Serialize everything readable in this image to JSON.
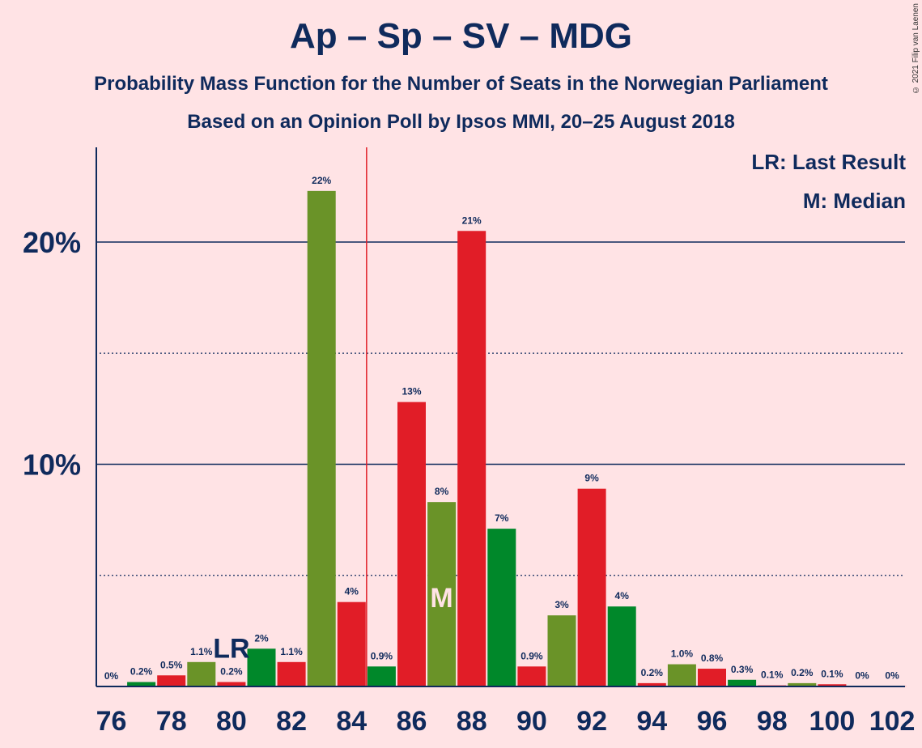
{
  "title": "Ap – Sp – SV – MDG",
  "subtitle1": "Probability Mass Function for the Number of Seats in the Norwegian Parliament",
  "subtitle2": "Based on an Opinion Poll by Ipsos MMI, 20–25 August 2018",
  "legend": {
    "lr": "LR: Last Result",
    "median": "M: Median"
  },
  "copyright": "© 2021 Filip van Laenen",
  "colors": {
    "background": "#FFE3E5",
    "text": "#0F2A5C",
    "red": "#E11D27",
    "green": "#00882A",
    "olive": "#6A9328",
    "majority_line": "#E11D27"
  },
  "chart_data": {
    "type": "bar",
    "x": [
      76,
      77,
      78,
      79,
      80,
      81,
      82,
      83,
      84,
      85,
      86,
      87,
      88,
      89,
      90,
      91,
      92,
      93,
      94,
      95,
      96,
      97,
      98,
      99,
      100,
      101,
      102
    ],
    "values": [
      0,
      0.2,
      0.5,
      1.1,
      0.2,
      1.7,
      1.1,
      22.3,
      3.8,
      0.9,
      12.8,
      8.3,
      20.5,
      7.1,
      0.9,
      3.2,
      8.9,
      3.6,
      0.15,
      1.0,
      0.8,
      0.3,
      0.05,
      0.15,
      0.1,
      0.02,
      0.01
    ],
    "labels": [
      "0%",
      "0.2%",
      "0.5%",
      "1.1%",
      "0.2%",
      "2%",
      "1.1%",
      "22%",
      "4%",
      "0.9%",
      "13%",
      "8%",
      "21%",
      "7%",
      "0.9%",
      "3%",
      "9%",
      "4%",
      "0.2%",
      "1.0%",
      "0.8%",
      "0.3%",
      "0.1%",
      "0.2%",
      "0.1%",
      "0%",
      "0%"
    ],
    "colors": [
      "red",
      "green",
      "red",
      "olive",
      "red",
      "green",
      "red",
      "olive",
      "red",
      "green",
      "red",
      "olive",
      "red",
      "green",
      "red",
      "olive",
      "red",
      "green",
      "red",
      "olive",
      "red",
      "green",
      "red",
      "olive",
      "red",
      "green",
      "red"
    ],
    "xtick_labels": [
      "76",
      "78",
      "80",
      "82",
      "84",
      "86",
      "88",
      "90",
      "92",
      "94",
      "96",
      "98",
      "100",
      "102"
    ],
    "yticks": [
      {
        "value": 10,
        "label": "10%"
      },
      {
        "value": 20,
        "label": "20%"
      }
    ],
    "ylim": [
      0,
      24
    ],
    "last_result": 80,
    "last_result_label": "LR",
    "median": 87,
    "median_label": "M",
    "majority_line": 84.5
  }
}
